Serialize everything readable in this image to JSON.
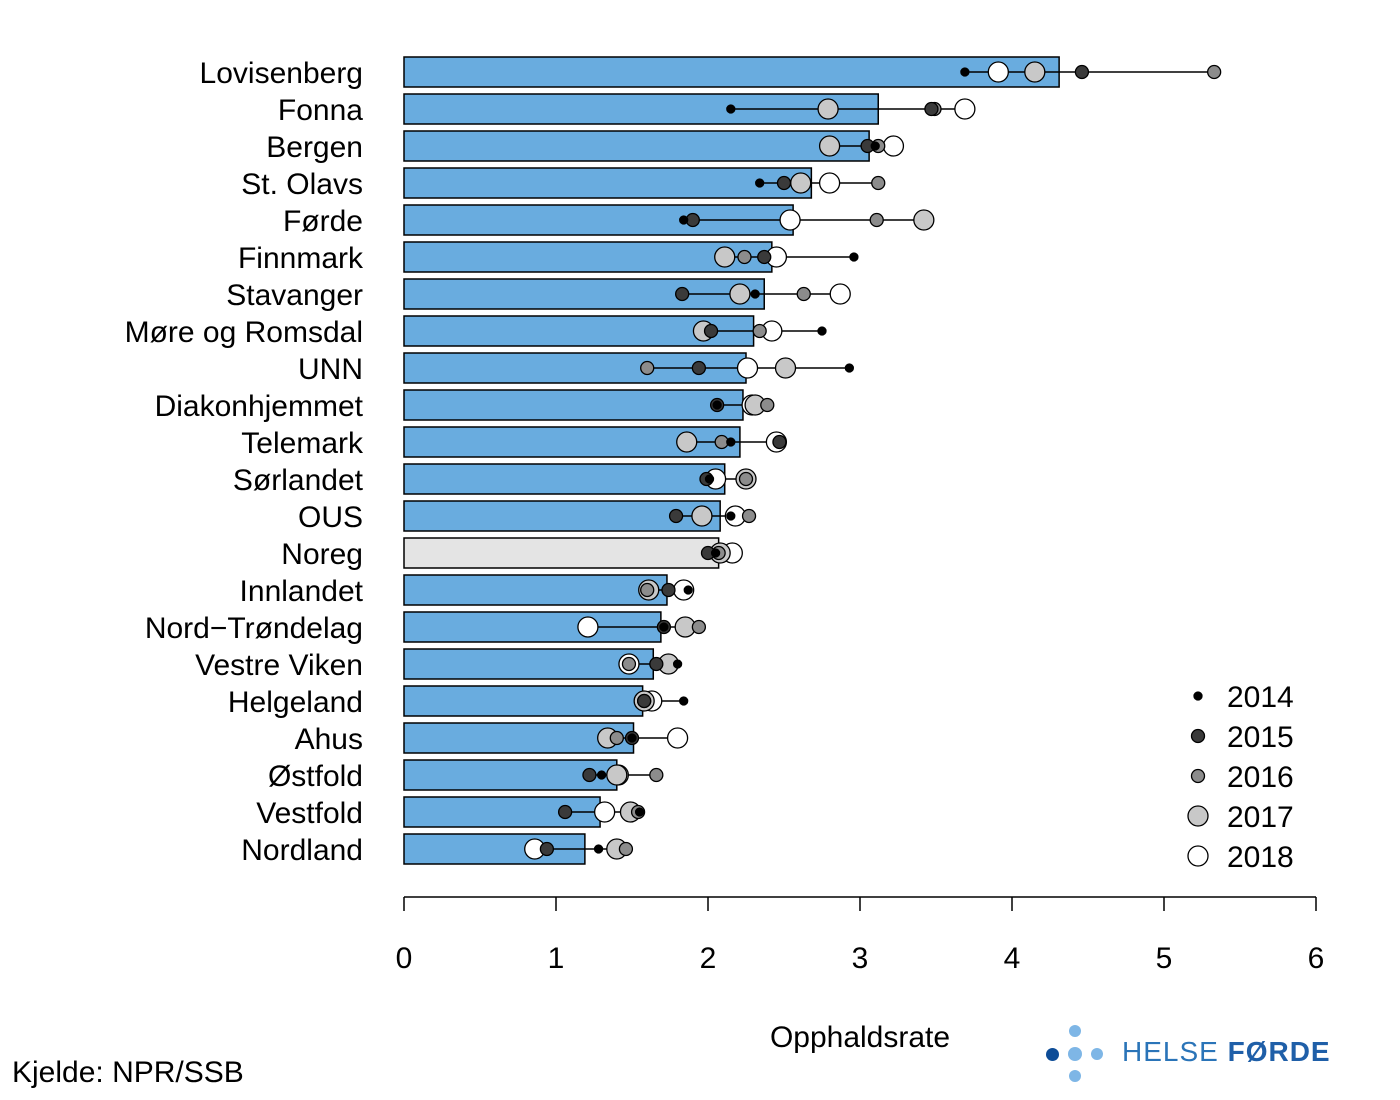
{
  "chart_data": {
    "type": "bar",
    "orientation": "horizontal",
    "title": "",
    "xlabel": "Opphaldsrate",
    "ylabel": "",
    "xlim": [
      0,
      6
    ],
    "xticks": [
      0,
      1,
      2,
      3,
      4,
      5,
      6
    ],
    "grid": false,
    "legend_position": "bottom-right",
    "years": [
      "2014",
      "2015",
      "2016",
      "2017",
      "2018"
    ],
    "year_styles": [
      {
        "year": "2014",
        "fill": "#000000",
        "size": "small"
      },
      {
        "year": "2015",
        "fill": "#3a3a3a",
        "size": "medium"
      },
      {
        "year": "2016",
        "fill": "#8c8c8c",
        "size": "medium"
      },
      {
        "year": "2017",
        "fill": "#c8c8c8",
        "size": "large"
      },
      {
        "year": "2018",
        "fill": "#ffffff",
        "size": "large"
      }
    ],
    "bar_color": "#69acdf",
    "highlight_bar_color": "#e4e4e4",
    "categories": [
      {
        "name": "Lovisenberg",
        "rate": 4.31,
        "years": [
          3.69,
          4.46,
          5.33,
          4.15,
          3.91
        ]
      },
      {
        "name": "Fonna",
        "rate": 3.12,
        "years": [
          2.15,
          3.47,
          3.49,
          2.79,
          3.69
        ]
      },
      {
        "name": "Bergen",
        "rate": 3.06,
        "years": [
          3.1,
          3.05,
          3.12,
          2.8,
          3.22
        ]
      },
      {
        "name": "St. Olavs",
        "rate": 2.68,
        "years": [
          2.34,
          2.5,
          3.12,
          2.61,
          2.8
        ]
      },
      {
        "name": "Førde",
        "rate": 2.56,
        "years": [
          1.84,
          1.9,
          3.11,
          3.42,
          2.54
        ]
      },
      {
        "name": "Finnmark",
        "rate": 2.42,
        "years": [
          2.96,
          2.37,
          2.24,
          2.11,
          2.45
        ]
      },
      {
        "name": "Stavanger",
        "rate": 2.37,
        "years": [
          2.31,
          1.83,
          2.63,
          2.21,
          2.87
        ]
      },
      {
        "name": "Møre og Romsdal",
        "rate": 2.3,
        "years": [
          2.75,
          2.02,
          2.34,
          1.97,
          2.42
        ]
      },
      {
        "name": "UNN",
        "rate": 2.25,
        "years": [
          2.93,
          1.94,
          1.6,
          2.51,
          2.26
        ]
      },
      {
        "name": "Diakonhjemmet",
        "rate": 2.23,
        "years": [
          2.06,
          2.06,
          2.39,
          2.31,
          2.29
        ]
      },
      {
        "name": "Telemark",
        "rate": 2.21,
        "years": [
          2.15,
          2.47,
          2.09,
          1.86,
          2.45
        ]
      },
      {
        "name": "Sørlandet",
        "rate": 2.11,
        "years": [
          2.01,
          1.99,
          2.25,
          2.25,
          2.05
        ]
      },
      {
        "name": "OUS",
        "rate": 2.08,
        "years": [
          2.15,
          1.79,
          2.27,
          1.96,
          2.18
        ]
      },
      {
        "name": "Noreg",
        "rate": 2.07,
        "years": [
          2.05,
          2.0,
          2.07,
          2.08,
          2.16
        ]
      },
      {
        "name": "Innlandet",
        "rate": 1.73,
        "years": [
          1.87,
          1.74,
          1.6,
          1.61,
          1.84
        ]
      },
      {
        "name": "Nord−Trøndelag",
        "rate": 1.69,
        "years": [
          1.71,
          1.71,
          1.94,
          1.85,
          1.21
        ]
      },
      {
        "name": "Vestre Viken",
        "rate": 1.64,
        "years": [
          1.8,
          1.66,
          1.48,
          1.74,
          1.48
        ]
      },
      {
        "name": "Helgeland",
        "rate": 1.57,
        "years": [
          1.84,
          1.58,
          1.58,
          1.58,
          1.63
        ]
      },
      {
        "name": "Ahus",
        "rate": 1.51,
        "years": [
          1.5,
          1.5,
          1.4,
          1.34,
          1.8
        ]
      },
      {
        "name": "Østfold",
        "rate": 1.4,
        "years": [
          1.3,
          1.22,
          1.66,
          1.4,
          1.41
        ]
      },
      {
        "name": "Vestfold",
        "rate": 1.29,
        "years": [
          1.55,
          1.06,
          1.54,
          1.49,
          1.32
        ]
      },
      {
        "name": "Nordland",
        "rate": 1.19,
        "years": [
          1.28,
          0.94,
          1.46,
          1.4,
          0.86
        ]
      }
    ]
  },
  "footer": {
    "source": "Kjelde: NPR/SSB",
    "logo_word1": "HELSE",
    "logo_word2": "FØRDE",
    "logo_colors": [
      "#0d4c97",
      "#7eb6e6"
    ]
  }
}
